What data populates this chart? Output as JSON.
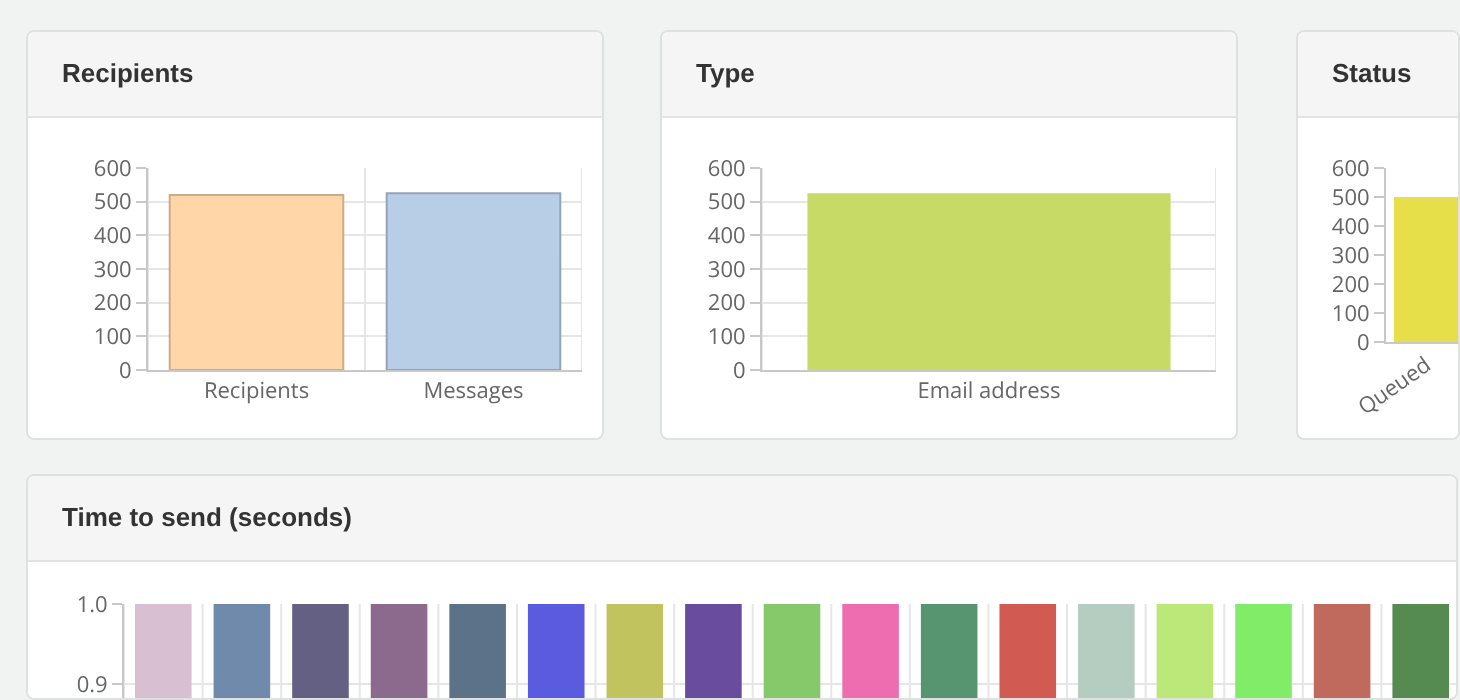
{
  "chart_data": [
    {
      "type": "bar",
      "title": "Recipients",
      "categories": [
        "Recipients",
        "Messages"
      ],
      "values": [
        520,
        525
      ],
      "colors": [
        "#ffd6a8",
        "#b8cde6"
      ],
      "ylim": [
        0,
        600
      ],
      "yticks": [
        0,
        100,
        200,
        300,
        400,
        500,
        600
      ],
      "grid": true
    },
    {
      "type": "bar",
      "title": "Type",
      "categories": [
        "Email address"
      ],
      "values": [
        525
      ],
      "colors": [
        "#c8da66"
      ],
      "ylim": [
        0,
        600
      ],
      "yticks": [
        0,
        100,
        200,
        300,
        400,
        500,
        600
      ],
      "grid": true
    },
    {
      "type": "bar",
      "title": "Status",
      "categories": [
        "Queued"
      ],
      "values": [
        500
      ],
      "colors": [
        "#e6df4a"
      ],
      "ylim": [
        0,
        600
      ],
      "yticks": [
        0,
        100,
        200,
        300,
        400,
        500,
        600
      ],
      "grid": false
    },
    {
      "type": "bar",
      "title": "Time to send (seconds)",
      "categories": [
        null,
        null,
        null,
        null,
        null,
        null,
        null,
        null,
        null,
        null,
        null,
        null,
        null,
        null,
        null,
        null,
        null
      ],
      "values": [
        1,
        1,
        1,
        1,
        1,
        1,
        1,
        1,
        1,
        1,
        1,
        1,
        1,
        1,
        1,
        1,
        1
      ],
      "colors": [
        "#d8c0d2",
        "#6f8aab",
        "#636083",
        "#8c6a8e",
        "#5c7289",
        "#5b5be0",
        "#c0c35e",
        "#6a4c9e",
        "#85c96a",
        "#ee6db0",
        "#579470",
        "#d15b52",
        "#b5cdc0",
        "#bbe878",
        "#80ec68",
        "#bf6a5c",
        "#558a50"
      ],
      "ylim": [
        0.88,
        1.0
      ],
      "yticks": [
        0.9,
        {
          "value": 1,
          "label": "1.0"
        }
      ],
      "grid": true
    }
  ]
}
